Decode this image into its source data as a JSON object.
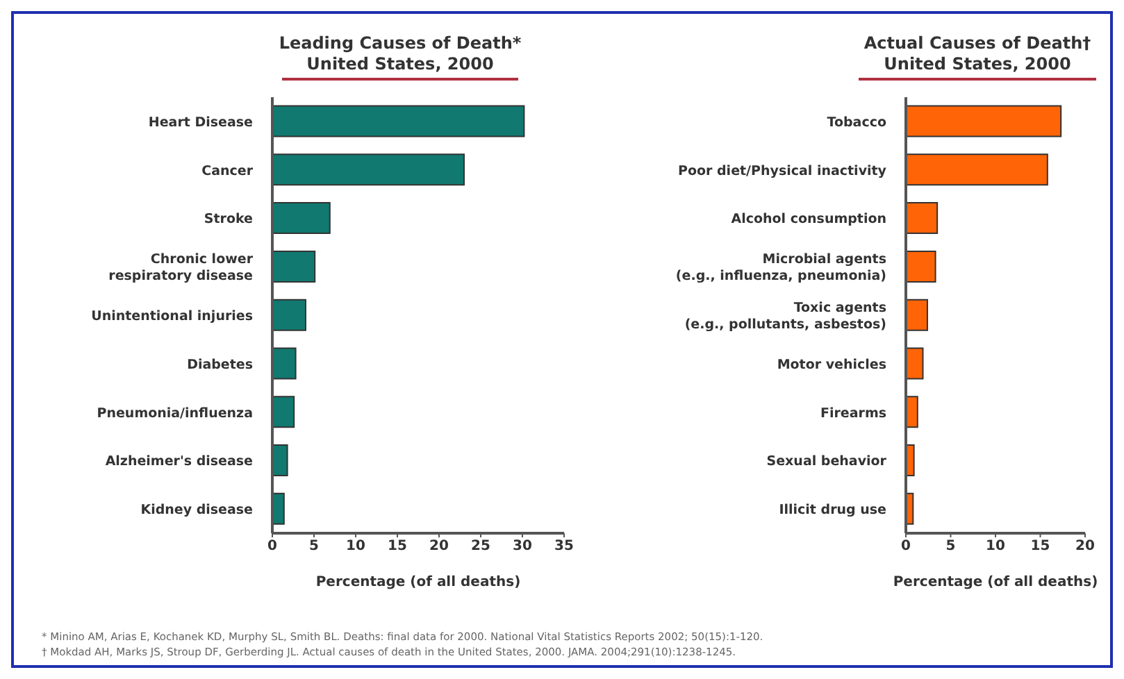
{
  "chart_data": [
    {
      "type": "bar",
      "orientation": "horizontal",
      "title": "Leading Causes of Death*",
      "subtitle": "United States, 2000",
      "xlabel": "Percentage (of all deaths)",
      "categories": [
        "Heart Disease",
        "Cancer",
        "Stroke",
        "Chronic lower respiratory disease",
        "Unintentional injuries",
        "Diabetes",
        "Pneumonia/influenza",
        "Alzheimer's disease",
        "Kidney disease"
      ],
      "values": [
        30.2,
        23,
        6.9,
        5.1,
        4,
        2.8,
        2.6,
        1.8,
        1.4
      ],
      "color": "#11796f",
      "xlim": [
        0,
        35
      ],
      "xticks": [
        0,
        5,
        10,
        15,
        20,
        25,
        30,
        35
      ],
      "grid": false,
      "legend": false,
      "annotations": [
        "* Minino AM, Arias E, Kochanek KD, Murphy SL, Smith BL. Deaths: final data for 2000. National Vital Statistics Reports 2002; 50(15):1-120."
      ]
    },
    {
      "type": "bar",
      "orientation": "horizontal",
      "title": "Actual Causes of Death†",
      "subtitle": "United States, 2000",
      "xlabel": "Percentage (of all deaths)",
      "categories": [
        "Tobacco",
        "Poor diet/Physical inactivity",
        "Alcohol consumption",
        "Microbial agents (e.g., influenza, pneumonia)",
        "Toxic agents (e.g., pollutants, asbestos)",
        "Motor vehicles",
        "Firearms",
        "Sexual behavior",
        "Illicit drug use"
      ],
      "values": [
        17.3,
        15.8,
        3.5,
        3.3,
        2.4,
        1.9,
        1.3,
        0.9,
        0.8
      ],
      "color": "#ff6407",
      "xlim": [
        0,
        20
      ],
      "xticks": [
        0,
        5,
        10,
        15,
        20
      ],
      "grid": false,
      "legend": false,
      "annotations": [
        "† Mokdad AH, Marks JS, Stroup DF, Gerberding JL. Actual causes of death in the United States, 2000. JAMA. 2004;291(10):1238-1245."
      ]
    }
  ]
}
